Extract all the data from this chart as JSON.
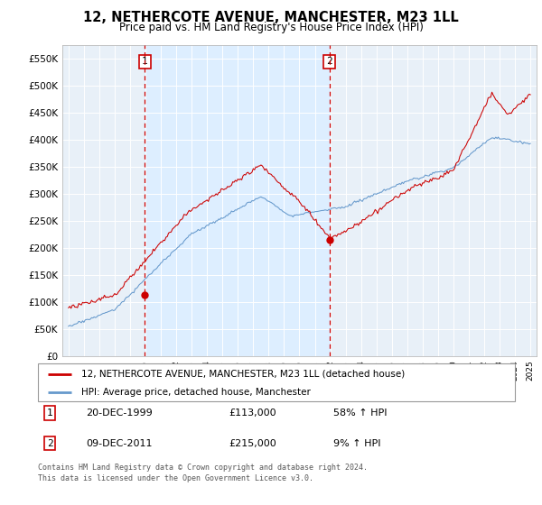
{
  "title": "12, NETHERCOTE AVENUE, MANCHESTER, M23 1LL",
  "subtitle": "Price paid vs. HM Land Registry's House Price Index (HPI)",
  "legend_line1": "12, NETHERCOTE AVENUE, MANCHESTER, M23 1LL (detached house)",
  "legend_line2": "HPI: Average price, detached house, Manchester",
  "annotation1_date": "20-DEC-1999",
  "annotation1_price": "£113,000",
  "annotation1_hpi": "58% ↑ HPI",
  "annotation1_year": 1999.96,
  "annotation1_value": 113000,
  "annotation2_date": "09-DEC-2011",
  "annotation2_price": "£215,000",
  "annotation2_hpi": "9% ↑ HPI",
  "annotation2_year": 2011.94,
  "annotation2_value": 215000,
  "footer": "Contains HM Land Registry data © Crown copyright and database right 2024.\nThis data is licensed under the Open Government Licence v3.0.",
  "red_color": "#cc0000",
  "blue_color": "#6699cc",
  "highlight_color": "#ddeeff",
  "plot_bg": "#e8f0f8",
  "ylim": [
    0,
    575000
  ],
  "yticks": [
    0,
    50000,
    100000,
    150000,
    200000,
    250000,
    300000,
    350000,
    400000,
    450000,
    500000,
    550000
  ],
  "ytick_labels": [
    "£0",
    "£50K",
    "£100K",
    "£150K",
    "£200K",
    "£250K",
    "£300K",
    "£350K",
    "£400K",
    "£450K",
    "£500K",
    "£550K"
  ],
  "xlim_start": 1994.6,
  "xlim_end": 2025.4
}
